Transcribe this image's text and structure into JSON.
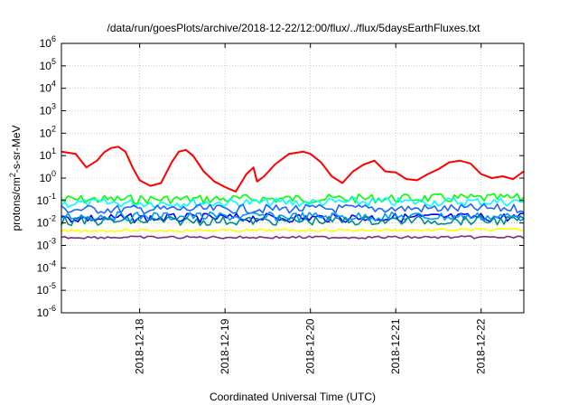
{
  "chart_data": {
    "type": "line",
    "title": "/data/run/goesPlots/archive/2018-12-22/12:00/flux/../flux/5daysEarthFluxes.txt",
    "xlabel": "Coordinated Universal Time (UTC)",
    "ylabel": "protons/cm2-s-sr-MeV",
    "ylabel_parts": {
      "base": "protons/cm",
      "sup": "2",
      "rest": "-s-sr-MeV"
    },
    "yscale": "log",
    "ylim": [
      1e-06,
      1000000.0
    ],
    "xlim": [
      "2018-12-17T02:00",
      "2018-12-22T12:00"
    ],
    "grid": true,
    "y_ticks": [
      {
        "value": 1e-06,
        "base": "10",
        "exp": "-6"
      },
      {
        "value": 1e-05,
        "base": "10",
        "exp": "-5"
      },
      {
        "value": 0.0001,
        "base": "10",
        "exp": "-4"
      },
      {
        "value": 0.001,
        "base": "10",
        "exp": "-3"
      },
      {
        "value": 0.01,
        "base": "10",
        "exp": "-2"
      },
      {
        "value": 0.1,
        "base": "10",
        "exp": "-1"
      },
      {
        "value": 1,
        "base": "10",
        "exp": "0"
      },
      {
        "value": 10,
        "base": "10",
        "exp": "1"
      },
      {
        "value": 100,
        "base": "10",
        "exp": "2"
      },
      {
        "value": 1000,
        "base": "10",
        "exp": "3"
      },
      {
        "value": 10000,
        "base": "10",
        "exp": "4"
      },
      {
        "value": 100000,
        "base": "10",
        "exp": "5"
      },
      {
        "value": 1000000,
        "base": "10",
        "exp": "6"
      }
    ],
    "x_ticks": [
      {
        "x": "2018-12-18T00:00",
        "label": "2018-12-18"
      },
      {
        "x": "2018-12-19T00:00",
        "label": "2018-12-19"
      },
      {
        "x": "2018-12-20T00:00",
        "label": "2018-12-20"
      },
      {
        "x": "2018-12-21T00:00",
        "label": "2018-12-21"
      },
      {
        "x": "2018-12-22T00:00",
        "label": "2018-12-22"
      }
    ],
    "series": [
      {
        "color": "#ff0000",
        "x": [
          "2018-12-17T02:00",
          "2018-12-17T06:00",
          "2018-12-17T09:00",
          "2018-12-17T12:00",
          "2018-12-17T14:00",
          "2018-12-17T16:00",
          "2018-12-17T18:00",
          "2018-12-17T20:00",
          "2018-12-17T22:00",
          "2018-12-18T00:00",
          "2018-12-18T03:00",
          "2018-12-18T06:00",
          "2018-12-18T09:00",
          "2018-12-18T11:00",
          "2018-12-18T13:00",
          "2018-12-18T15:00",
          "2018-12-18T18:00",
          "2018-12-18T21:00",
          "2018-12-19T00:00",
          "2018-12-19T03:00",
          "2018-12-19T06:00",
          "2018-12-19T08:00",
          "2018-12-19T09:00",
          "2018-12-19T11:00",
          "2018-12-19T14:00",
          "2018-12-19T18:00",
          "2018-12-19T22:00",
          "2018-12-20T00:00",
          "2018-12-20T03:00",
          "2018-12-20T06:00",
          "2018-12-20T09:00",
          "2018-12-20T12:00",
          "2018-12-20T15:00",
          "2018-12-20T18:00",
          "2018-12-20T21:00",
          "2018-12-21T00:00",
          "2018-12-21T03:00",
          "2018-12-21T06:00",
          "2018-12-21T09:00",
          "2018-12-21T12:00",
          "2018-12-21T15:00",
          "2018-12-21T18:00",
          "2018-12-21T21:00",
          "2018-12-22T00:00",
          "2018-12-22T03:00",
          "2018-12-22T06:00",
          "2018-12-22T09:00",
          "2018-12-22T12:00"
        ],
        "y": [
          15,
          12,
          3,
          6,
          14,
          22,
          25,
          15,
          3,
          0.8,
          0.45,
          0.6,
          5,
          15,
          18,
          10,
          2,
          0.7,
          0.4,
          0.25,
          1.5,
          3,
          0.7,
          1.2,
          4,
          12,
          15,
          12,
          5,
          1.2,
          0.6,
          2,
          4,
          6,
          2,
          1.8,
          0.9,
          0.8,
          1.5,
          2.5,
          5,
          6,
          4.5,
          1.5,
          1.0,
          1.2,
          0.9,
          2.0
        ]
      },
      {
        "color": "#00ff00",
        "x": [
          "2018-12-17T02:00",
          "2018-12-22T12:00"
        ],
        "y": [
          0.11,
          0.13
        ]
      },
      {
        "color": "#00ffff",
        "x": [
          "2018-12-17T02:00",
          "2018-12-22T12:00"
        ],
        "y": [
          0.075,
          0.09
        ]
      },
      {
        "color": "#1e64ff",
        "x": [
          "2018-12-17T02:00",
          "2018-12-22T12:00"
        ],
        "y": [
          0.04,
          0.045
        ]
      },
      {
        "color": "#0000ff",
        "x": [
          "2018-12-17T02:00",
          "2018-12-22T12:00"
        ],
        "y": [
          0.016,
          0.018
        ]
      },
      {
        "color": "#0096ff",
        "x": [
          "2018-12-17T02:00",
          "2018-12-22T12:00"
        ],
        "y": [
          0.02,
          0.019
        ]
      },
      {
        "color": "#008b8b",
        "x": [
          "2018-12-17T02:00",
          "2018-12-22T12:00"
        ],
        "y": [
          0.012,
          0.013
        ]
      },
      {
        "color": "#ffff00",
        "x": [
          "2018-12-17T02:00",
          "2018-12-22T12:00"
        ],
        "y": [
          0.0045,
          0.005
        ]
      },
      {
        "color": "#7a2f7a",
        "x": [
          "2018-12-17T02:00",
          "2018-12-22T12:00"
        ],
        "y": [
          0.0023,
          0.0023
        ]
      }
    ]
  }
}
